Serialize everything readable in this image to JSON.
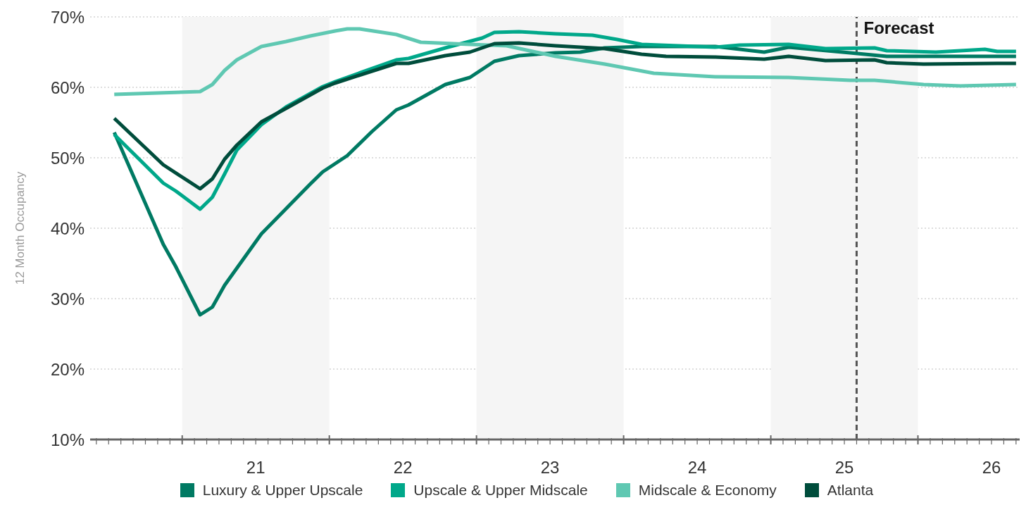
{
  "chart_data": {
    "type": "line",
    "ylabel": "12 Month Occupancy",
    "legend": "bottom",
    "grid": "y",
    "marker": "none",
    "line_style": "solid",
    "xlim": [
      "2020-05-16",
      "2026-09-10"
    ],
    "ylim": [
      10,
      70
    ],
    "yticks": [
      {
        "value": 10,
        "label": "10%"
      },
      {
        "value": 20,
        "label": "20%"
      },
      {
        "value": 30,
        "label": "30%"
      },
      {
        "value": 40,
        "label": "40%"
      },
      {
        "value": 50,
        "label": "50%"
      },
      {
        "value": 60,
        "label": "60%"
      },
      {
        "value": 70,
        "label": "70%"
      }
    ],
    "xticks": [
      {
        "value": "2020-06-01",
        "label": null
      },
      {
        "value": "2020-07-01",
        "label": null
      },
      {
        "value": "2020-08-01",
        "label": null
      },
      {
        "value": "2020-09-01",
        "label": null
      },
      {
        "value": "2020-10-01",
        "label": null
      },
      {
        "value": "2020-11-01",
        "label": null
      },
      {
        "value": "2020-12-01",
        "label": null
      },
      {
        "value": "2021-01-01",
        "label": null
      },
      {
        "value": "2021-02-01",
        "label": null
      },
      {
        "value": "2021-03-01",
        "label": null
      },
      {
        "value": "2021-04-01",
        "label": null
      },
      {
        "value": "2021-05-01",
        "label": null
      },
      {
        "value": "2021-06-01",
        "label": null
      },
      {
        "value": "2021-07-01",
        "label": "21"
      },
      {
        "value": "2021-08-01",
        "label": null
      },
      {
        "value": "2021-09-01",
        "label": null
      },
      {
        "value": "2021-10-01",
        "label": null
      },
      {
        "value": "2021-11-01",
        "label": null
      },
      {
        "value": "2021-12-01",
        "label": null
      },
      {
        "value": "2022-01-01",
        "label": null
      },
      {
        "value": "2022-02-01",
        "label": null
      },
      {
        "value": "2022-03-01",
        "label": null
      },
      {
        "value": "2022-04-01",
        "label": null
      },
      {
        "value": "2022-05-01",
        "label": null
      },
      {
        "value": "2022-06-01",
        "label": null
      },
      {
        "value": "2022-07-01",
        "label": "22"
      },
      {
        "value": "2022-08-01",
        "label": null
      },
      {
        "value": "2022-09-01",
        "label": null
      },
      {
        "value": "2022-10-01",
        "label": null
      },
      {
        "value": "2022-11-01",
        "label": null
      },
      {
        "value": "2022-12-01",
        "label": null
      },
      {
        "value": "2023-01-01",
        "label": null
      },
      {
        "value": "2023-02-01",
        "label": null
      },
      {
        "value": "2023-03-01",
        "label": null
      },
      {
        "value": "2023-04-01",
        "label": null
      },
      {
        "value": "2023-05-01",
        "label": null
      },
      {
        "value": "2023-06-01",
        "label": null
      },
      {
        "value": "2023-07-01",
        "label": "23"
      },
      {
        "value": "2023-08-01",
        "label": null
      },
      {
        "value": "2023-09-01",
        "label": null
      },
      {
        "value": "2023-10-01",
        "label": null
      },
      {
        "value": "2023-11-01",
        "label": null
      },
      {
        "value": "2023-12-01",
        "label": null
      },
      {
        "value": "2024-01-01",
        "label": null
      },
      {
        "value": "2024-02-01",
        "label": null
      },
      {
        "value": "2024-03-01",
        "label": null
      },
      {
        "value": "2024-04-01",
        "label": null
      },
      {
        "value": "2024-05-01",
        "label": null
      },
      {
        "value": "2024-06-01",
        "label": null
      },
      {
        "value": "2024-07-01",
        "label": "24"
      },
      {
        "value": "2024-08-01",
        "label": null
      },
      {
        "value": "2024-09-01",
        "label": null
      },
      {
        "value": "2024-10-01",
        "label": null
      },
      {
        "value": "2024-11-01",
        "label": null
      },
      {
        "value": "2024-12-01",
        "label": null
      },
      {
        "value": "2025-01-01",
        "label": null
      },
      {
        "value": "2025-02-01",
        "label": null
      },
      {
        "value": "2025-03-01",
        "label": null
      },
      {
        "value": "2025-04-01",
        "label": null
      },
      {
        "value": "2025-05-01",
        "label": null
      },
      {
        "value": "2025-06-01",
        "label": null
      },
      {
        "value": "2025-07-01",
        "label": "25"
      },
      {
        "value": "2025-08-01",
        "label": null
      },
      {
        "value": "2025-09-01",
        "label": null
      },
      {
        "value": "2025-10-01",
        "label": null
      },
      {
        "value": "2025-11-01",
        "label": null
      },
      {
        "value": "2025-12-01",
        "label": null
      },
      {
        "value": "2026-01-01",
        "label": null
      },
      {
        "value": "2026-02-01",
        "label": null
      },
      {
        "value": "2026-03-01",
        "label": null
      },
      {
        "value": "2026-04-01",
        "label": null
      },
      {
        "value": "2026-05-01",
        "label": null
      },
      {
        "value": "2026-06-01",
        "label": null
      },
      {
        "value": "2026-07-01",
        "label": "26"
      },
      {
        "value": "2026-08-01",
        "label": null
      },
      {
        "value": "2026-09-01",
        "label": null
      }
    ],
    "bands": [
      {
        "axis": "x",
        "from": "2021-01-01",
        "to": "2022-01-01",
        "color": "#f5f5f5"
      },
      {
        "axis": "x",
        "from": "2023-01-01",
        "to": "2024-01-01",
        "color": "#f5f5f5"
      },
      {
        "axis": "x",
        "from": "2025-01-01",
        "to": "2026-01-01",
        "color": "#f5f5f5"
      }
    ],
    "ref_lines": [
      {
        "axis": "x",
        "value": "2025-08-01",
        "label": "Forecast",
        "color": "#555555",
        "line_style": "dashed"
      }
    ],
    "series": [
      {
        "name": "Luxury & Upper Upscale",
        "color": "#007a63",
        "x": [
          "2020-07-15",
          "2020-11-15",
          "2020-12-15",
          "2021-02-15",
          "2021-03-15",
          "2021-04-15",
          "2021-07-15",
          "2021-11-15",
          "2021-12-15",
          "2022-02-15",
          "2022-04-15",
          "2022-06-15",
          "2022-07-15",
          "2022-10-15",
          "2022-12-15",
          "2023-02-15",
          "2023-04-15",
          "2023-07-15",
          "2023-09-15",
          "2023-11-15",
          "2024-02-15",
          "2024-08-15",
          "2024-12-15",
          "2025-02-15",
          "2025-07-15",
          "2025-10-15",
          "2026-09-01"
        ],
        "values": [
          53.6,
          37.7,
          34.6,
          27.7,
          28.8,
          31.9,
          39.2,
          46.3,
          48.0,
          50.3,
          53.7,
          56.8,
          57.5,
          60.4,
          61.4,
          63.7,
          64.5,
          64.9,
          65.0,
          65.6,
          65.8,
          65.8,
          65.0,
          65.7,
          64.9,
          64.4,
          64.4
        ]
      },
      {
        "name": "Upscale & Upper Midscale",
        "color": "#00a88a",
        "x": [
          "2020-07-15",
          "2020-11-15",
          "2020-12-15",
          "2021-02-15",
          "2021-03-15",
          "2021-04-15",
          "2021-05-15",
          "2021-07-15",
          "2021-09-15",
          "2021-12-15",
          "2022-01-15",
          "2022-06-15",
          "2022-07-15",
          "2022-10-15",
          "2023-01-15",
          "2023-02-15",
          "2023-04-15",
          "2023-07-15",
          "2023-10-15",
          "2023-12-15",
          "2024-02-15",
          "2024-08-15",
          "2024-10-15",
          "2025-02-15",
          "2025-05-15",
          "2025-09-15",
          "2025-10-15",
          "2026-02-15",
          "2026-06-15",
          "2026-07-15",
          "2026-09-01"
        ],
        "values": [
          53.3,
          46.4,
          45.3,
          42.7,
          44.4,
          47.7,
          51.1,
          54.7,
          57.2,
          60.1,
          60.8,
          63.9,
          64.1,
          65.6,
          67.0,
          67.8,
          67.9,
          67.6,
          67.4,
          66.8,
          66.1,
          65.7,
          66.0,
          66.1,
          65.5,
          65.6,
          65.2,
          65.0,
          65.4,
          65.1,
          65.1
        ]
      },
      {
        "name": "Midscale & Economy",
        "color": "#5fc8b2",
        "x": [
          "2020-07-15",
          "2021-02-15",
          "2021-03-15",
          "2021-04-15",
          "2021-05-15",
          "2021-07-15",
          "2021-09-15",
          "2021-11-15",
          "2022-01-15",
          "2022-02-15",
          "2022-03-15",
          "2022-06-15",
          "2022-08-15",
          "2022-12-15",
          "2023-03-15",
          "2023-07-15",
          "2023-11-15",
          "2024-03-15",
          "2024-08-15",
          "2025-02-15",
          "2025-07-15",
          "2025-09-15",
          "2026-01-15",
          "2026-04-15",
          "2026-09-01"
        ],
        "values": [
          59.0,
          59.4,
          60.4,
          62.4,
          63.9,
          65.8,
          66.5,
          67.3,
          68.0,
          68.3,
          68.3,
          67.5,
          66.4,
          66.1,
          65.9,
          64.4,
          63.3,
          62.0,
          61.5,
          61.4,
          61.0,
          61.0,
          60.4,
          60.2,
          60.4
        ]
      },
      {
        "name": "Atlanta",
        "color": "#004d3c",
        "x": [
          "2020-07-15",
          "2020-11-15",
          "2021-02-15",
          "2021-03-15",
          "2021-04-15",
          "2021-05-15",
          "2021-07-15",
          "2021-09-15",
          "2021-12-15",
          "2022-01-15",
          "2022-06-15",
          "2022-07-15",
          "2022-10-15",
          "2022-12-15",
          "2023-02-15",
          "2023-04-15",
          "2023-07-15",
          "2023-11-15",
          "2024-02-15",
          "2024-04-15",
          "2024-08-15",
          "2024-12-15",
          "2025-02-15",
          "2025-05-15",
          "2025-09-15",
          "2025-10-15",
          "2026-01-15",
          "2026-07-15",
          "2026-09-01"
        ],
        "values": [
          55.6,
          49.0,
          45.6,
          47.0,
          49.8,
          51.8,
          55.1,
          57.0,
          59.9,
          60.6,
          63.4,
          63.4,
          64.5,
          65.0,
          66.2,
          66.3,
          65.9,
          65.5,
          64.7,
          64.4,
          64.3,
          64.0,
          64.4,
          63.8,
          63.9,
          63.5,
          63.3,
          63.4,
          63.4
        ]
      }
    ]
  }
}
